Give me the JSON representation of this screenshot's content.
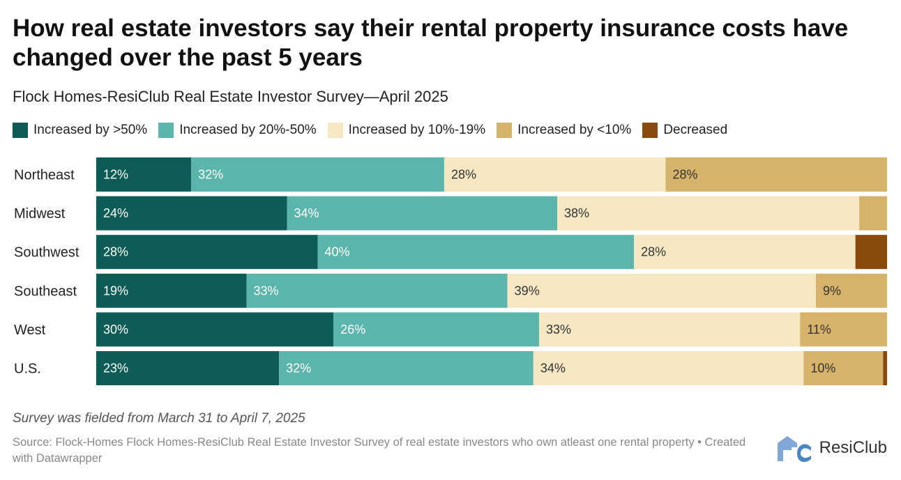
{
  "header": {
    "title": "How real estate investors say their rental property insurance costs have changed over the past 5 years",
    "subtitle": "Flock Homes-ResiClub Real Estate Investor Survey—April 2025"
  },
  "footer": {
    "note": "Survey was fielded from March 31 to April 7, 2025",
    "source": "Source: Flock-Homes Flock Homes-ResiClub Real Estate Investor Survey of real estate investors who own atleast one rental property • Created with Datawrapper",
    "brand": "ResiClub",
    "logo_icon": "resiclub-logo-icon"
  },
  "chart_data": {
    "type": "bar",
    "orientation": "horizontal",
    "stacked": true,
    "categories": [
      "Northeast",
      "Midwest",
      "Southwest",
      "Southeast",
      "West",
      "U.S."
    ],
    "series": [
      {
        "name": "Increased by >50%",
        "color": "#0d5c55",
        "values": [
          12,
          24,
          28,
          19,
          30,
          23
        ],
        "labels": [
          "12%",
          "24%",
          "28%",
          "19%",
          "30%",
          "23%"
        ]
      },
      {
        "name": "Increased by 20%-50%",
        "color": "#5bb5ab",
        "values": [
          32,
          34,
          40,
          33,
          26,
          32
        ],
        "labels": [
          "32%",
          "34%",
          "40%",
          "33%",
          "26%",
          "32%"
        ]
      },
      {
        "name": "Increased by 10%-19%",
        "color": "#f6e7c3",
        "values": [
          28,
          38,
          28,
          39,
          33,
          34
        ],
        "labels": [
          "28%",
          "38%",
          "28%",
          "39%",
          "33%",
          "34%"
        ]
      },
      {
        "name": "Increased by <10%",
        "color": "#d6b26a",
        "values": [
          28,
          3.5,
          0,
          9,
          11,
          10
        ],
        "labels": [
          "28%",
          "",
          "",
          "9%",
          "11%",
          "10%"
        ]
      },
      {
        "name": "Decreased",
        "color": "#8a4a0b",
        "values": [
          0,
          0,
          4,
          0,
          0,
          0.5
        ],
        "labels": [
          "",
          "",
          "",
          "",
          "",
          ""
        ]
      }
    ],
    "xlim": [
      0,
      100
    ],
    "legend_position": "top-left",
    "grid": false
  }
}
